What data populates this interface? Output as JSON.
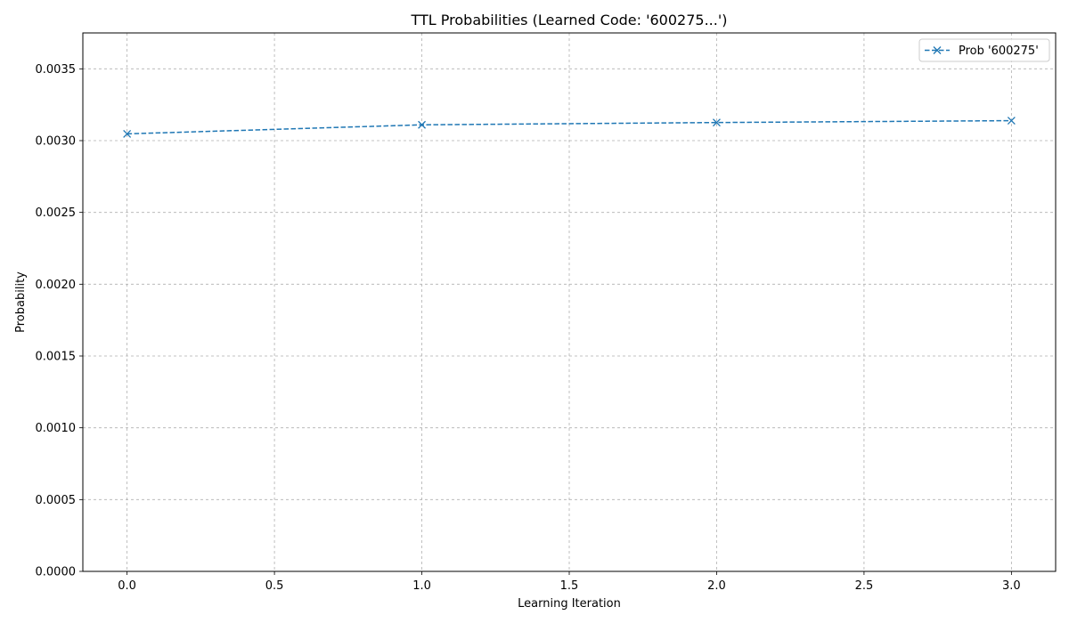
{
  "chart_data": {
    "type": "line",
    "title": "TTL Probabilities (Learned Code: '600275...')",
    "xlabel": "Learning Iteration",
    "ylabel": "Probability",
    "xlim": [
      -0.15,
      3.15
    ],
    "ylim": [
      0.0,
      0.00375
    ],
    "xticks": [
      0.0,
      0.5,
      1.0,
      1.5,
      2.0,
      2.5,
      3.0
    ],
    "xtick_labels": [
      "0.0",
      "0.5",
      "1.0",
      "1.5",
      "2.0",
      "2.5",
      "3.0"
    ],
    "yticks": [
      0.0,
      0.0005,
      0.001,
      0.0015,
      0.002,
      0.0025,
      0.003,
      0.0035
    ],
    "ytick_labels": [
      "0.0000",
      "0.0005",
      "0.0010",
      "0.0015",
      "0.0020",
      "0.0025",
      "0.0030",
      "0.0035"
    ],
    "grid": true,
    "legend_position": "top-right",
    "series": [
      {
        "name": "Prob '600275'",
        "color": "#1f77b4",
        "line_style": "dashed",
        "marker": "x",
        "x": [
          0,
          1,
          2,
          3
        ],
        "y": [
          0.003047,
          0.00311,
          0.003126,
          0.003139
        ]
      }
    ]
  }
}
